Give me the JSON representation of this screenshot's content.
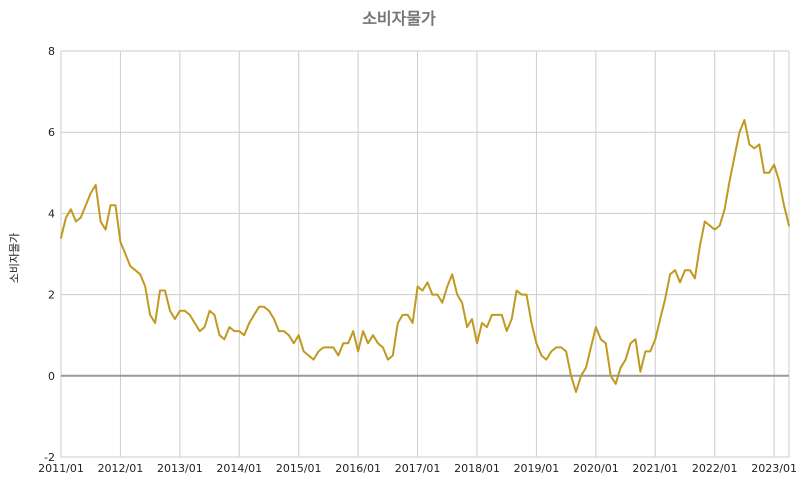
{
  "chart_data": {
    "type": "line",
    "title": "소비자물가",
    "ylabel": "소비자물가",
    "xlabel": "",
    "ylim": [
      -2,
      8
    ],
    "yticks": [
      -2,
      0,
      2,
      4,
      6,
      8
    ],
    "x_start": "2011/01",
    "x_end": "2023/04",
    "x_tick_labels": [
      "2011/01",
      "2012/01",
      "2013/01",
      "2014/01",
      "2015/01",
      "2016/01",
      "2017/01",
      "2018/01",
      "2019/01",
      "2020/01",
      "2021/01",
      "2022/01",
      "2023/01"
    ],
    "grid": true,
    "series": [
      {
        "color": "#c09a20",
        "values": [
          3.4,
          3.9,
          4.1,
          3.8,
          3.9,
          4.2,
          4.5,
          4.7,
          3.8,
          3.6,
          4.2,
          4.2,
          3.3,
          3.0,
          2.7,
          2.6,
          2.5,
          2.2,
          1.5,
          1.3,
          2.1,
          2.1,
          1.6,
          1.4,
          1.6,
          1.6,
          1.5,
          1.3,
          1.1,
          1.2,
          1.6,
          1.5,
          1.0,
          0.9,
          1.2,
          1.1,
          1.1,
          1.0,
          1.3,
          1.5,
          1.7,
          1.7,
          1.6,
          1.4,
          1.1,
          1.1,
          1.0,
          0.8,
          1.0,
          0.6,
          0.5,
          0.4,
          0.6,
          0.7,
          0.7,
          0.7,
          0.5,
          0.8,
          0.8,
          1.1,
          0.6,
          1.1,
          0.8,
          1.0,
          0.8,
          0.7,
          0.4,
          0.5,
          1.3,
          1.5,
          1.5,
          1.3,
          2.2,
          2.1,
          2.3,
          2.0,
          2.0,
          1.8,
          2.2,
          2.5,
          2.0,
          1.8,
          1.2,
          1.4,
          0.8,
          1.3,
          1.2,
          1.5,
          1.5,
          1.5,
          1.1,
          1.4,
          2.1,
          2.0,
          2.0,
          1.3,
          0.8,
          0.5,
          0.4,
          0.6,
          0.7,
          0.7,
          0.6,
          0.0,
          -0.4,
          0.0,
          0.2,
          0.7,
          1.2,
          0.9,
          0.8,
          0.0,
          -0.2,
          0.2,
          0.4,
          0.8,
          0.9,
          0.1,
          0.6,
          0.6,
          0.9,
          1.4,
          1.9,
          2.5,
          2.6,
          2.3,
          2.6,
          2.6,
          2.4,
          3.2,
          3.8,
          3.7,
          3.6,
          3.7,
          4.1,
          4.8,
          5.4,
          6.0,
          6.3,
          5.7,
          5.6,
          5.7,
          5.0,
          5.0,
          5.2,
          4.8,
          4.2,
          3.7
        ]
      }
    ]
  }
}
